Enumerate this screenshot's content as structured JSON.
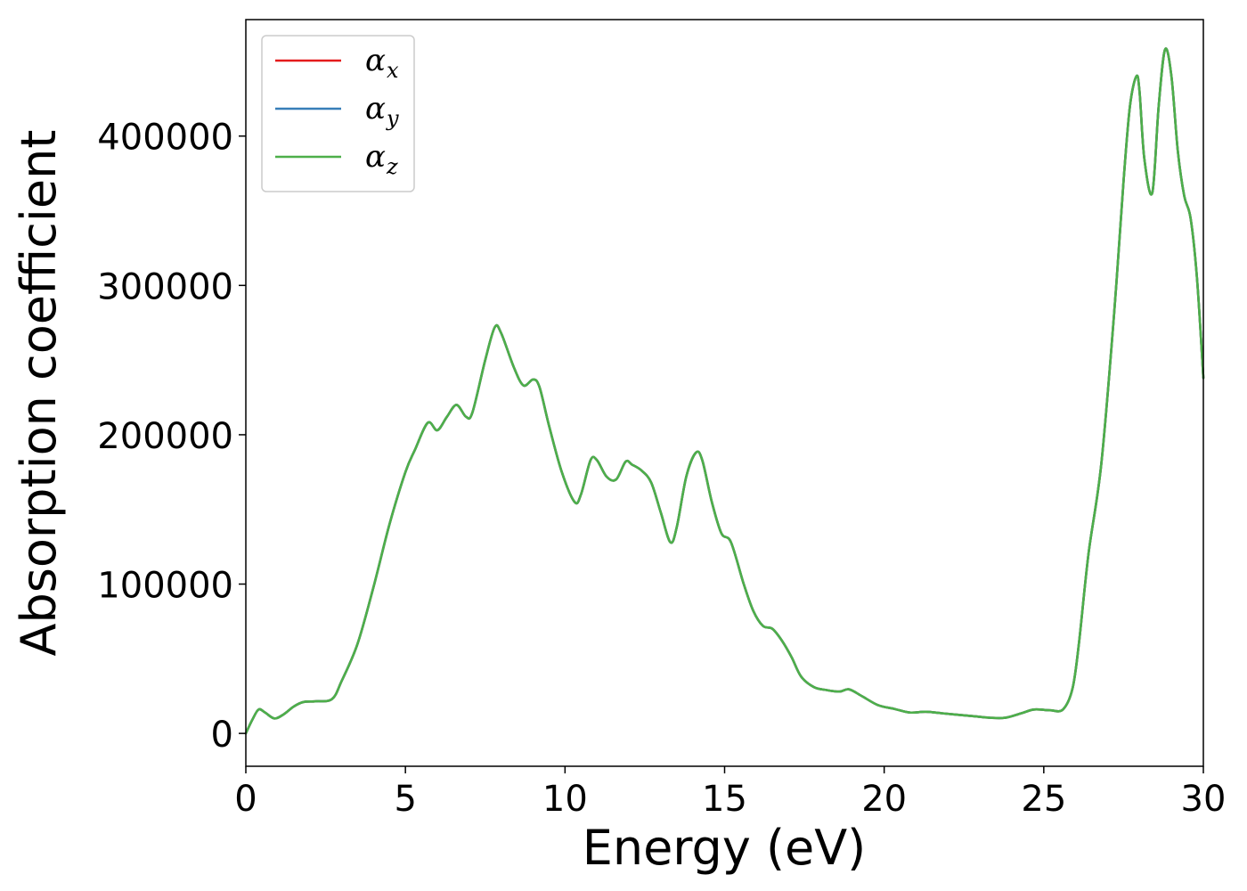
{
  "chart_data": {
    "type": "line",
    "title": "",
    "xlabel": "Energy (eV)",
    "ylabel": "Absorption coefficient",
    "xlim": [
      0,
      30
    ],
    "ylim": [
      -22000,
      478000
    ],
    "xticks": [
      0,
      5,
      10,
      15,
      20,
      25,
      30
    ],
    "xtick_labels": [
      "0",
      "5",
      "10",
      "15",
      "20",
      "25",
      "30"
    ],
    "yticks": [
      0,
      100000,
      200000,
      300000,
      400000
    ],
    "ytick_labels": [
      "0",
      "100000",
      "200000",
      "300000",
      "400000"
    ],
    "grid": false,
    "legend_position": "top-left",
    "x": [
      0,
      0.2,
      0.4,
      0.6,
      0.9,
      1.2,
      1.5,
      1.8,
      2.2,
      2.7,
      3.0,
      3.5,
      4.0,
      4.5,
      5.0,
      5.3,
      5.7,
      6.0,
      6.3,
      6.6,
      6.9,
      7.1,
      7.5,
      7.8,
      8.0,
      8.4,
      8.7,
      9.0,
      9.2,
      9.5,
      9.9,
      10.3,
      10.5,
      10.8,
      11.0,
      11.3,
      11.6,
      11.9,
      12.1,
      12.4,
      12.7,
      13.0,
      13.3,
      13.5,
      13.8,
      14.1,
      14.3,
      14.6,
      14.9,
      15.2,
      15.6,
      15.9,
      16.2,
      16.5,
      16.8,
      17.1,
      17.4,
      17.8,
      18.2,
      18.6,
      18.9,
      19.3,
      19.8,
      20.3,
      20.8,
      21.3,
      21.8,
      22.3,
      22.8,
      23.3,
      23.8,
      24.3,
      24.7,
      25.2,
      25.6,
      25.9,
      26.1,
      26.4,
      26.8,
      27.2,
      27.5,
      27.7,
      27.9,
      28.0,
      28.15,
      28.4,
      28.6,
      28.8,
      29.0,
      29.2,
      29.4,
      29.6,
      29.8,
      30.0
    ],
    "series": [
      {
        "name": "α_x",
        "legend_symbol": "α",
        "legend_subscript": "x",
        "color": "#e41a1c",
        "values": [
          0,
          9000,
          16000,
          14000,
          10000,
          13000,
          18000,
          21000,
          21500,
          23000,
          35000,
          60000,
          98000,
          140000,
          175000,
          190000,
          208000,
          203000,
          212000,
          220000,
          212000,
          215000,
          250000,
          272000,
          268000,
          245000,
          233000,
          237000,
          232000,
          206000,
          175000,
          155000,
          160000,
          183000,
          183000,
          172000,
          170000,
          182000,
          180000,
          176000,
          168000,
          148000,
          128000,
          138000,
          172000,
          188000,
          183000,
          155000,
          134000,
          128000,
          100000,
          82000,
          72000,
          70000,
          62000,
          51000,
          38000,
          31000,
          29000,
          28000,
          29500,
          25000,
          19000,
          16500,
          14000,
          14500,
          13500,
          12500,
          11500,
          10500,
          10500,
          13500,
          16000,
          15500,
          16000,
          30000,
          60000,
          120000,
          180000,
          280000,
          370000,
          420000,
          440000,
          430000,
          385000,
          362000,
          420000,
          458000,
          440000,
          390000,
          360000,
          345000,
          305000,
          238000
        ]
      },
      {
        "name": "α_y",
        "legend_symbol": "α",
        "legend_subscript": "y",
        "color": "#377eb8",
        "values": [
          0,
          9000,
          16000,
          14000,
          10000,
          13000,
          18000,
          21000,
          21500,
          23000,
          35000,
          60000,
          98000,
          140000,
          175000,
          190000,
          208000,
          203000,
          212000,
          220000,
          212000,
          215000,
          250000,
          272000,
          268000,
          245000,
          233000,
          237000,
          232000,
          206000,
          175000,
          155000,
          160000,
          183000,
          183000,
          172000,
          170000,
          182000,
          180000,
          176000,
          168000,
          148000,
          128000,
          138000,
          172000,
          188000,
          183000,
          155000,
          134000,
          128000,
          100000,
          82000,
          72000,
          70000,
          62000,
          51000,
          38000,
          31000,
          29000,
          28000,
          29500,
          25000,
          19000,
          16500,
          14000,
          14500,
          13500,
          12500,
          11500,
          10500,
          10500,
          13500,
          16000,
          15500,
          16000,
          30000,
          60000,
          120000,
          180000,
          280000,
          370000,
          420000,
          440000,
          430000,
          385000,
          362000,
          420000,
          458000,
          440000,
          390000,
          360000,
          345000,
          305000,
          238000
        ]
      },
      {
        "name": "α_z",
        "legend_symbol": "α",
        "legend_subscript": "z",
        "color": "#4daf4a",
        "values": [
          0,
          9000,
          16000,
          14000,
          10000,
          13000,
          18000,
          21000,
          21500,
          23000,
          35000,
          60000,
          98000,
          140000,
          175000,
          190000,
          208000,
          203000,
          212000,
          220000,
          212000,
          215000,
          250000,
          272000,
          268000,
          245000,
          233000,
          237000,
          232000,
          206000,
          175000,
          155000,
          160000,
          183000,
          183000,
          172000,
          170000,
          182000,
          180000,
          176000,
          168000,
          148000,
          128000,
          138000,
          172000,
          188000,
          183000,
          155000,
          134000,
          128000,
          100000,
          82000,
          72000,
          70000,
          62000,
          51000,
          38000,
          31000,
          29000,
          28000,
          29500,
          25000,
          19000,
          16500,
          14000,
          14500,
          13500,
          12500,
          11500,
          10500,
          10500,
          13500,
          16000,
          15500,
          16000,
          30000,
          60000,
          120000,
          180000,
          280000,
          370000,
          420000,
          440000,
          430000,
          385000,
          362000,
          420000,
          458000,
          440000,
          390000,
          360000,
          345000,
          305000,
          238000
        ]
      }
    ]
  }
}
